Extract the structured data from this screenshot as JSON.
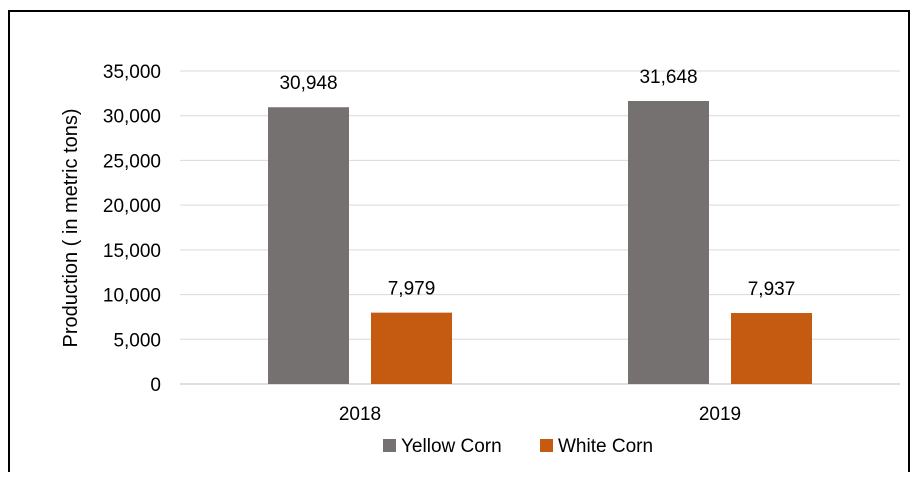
{
  "chart_data": {
    "type": "bar",
    "title": "",
    "xlabel": "",
    "ylabel": "Production ( in metric tons)",
    "categories": [
      "2018",
      "2019"
    ],
    "series": [
      {
        "name": "Yellow Corn",
        "color": "#767171",
        "values": [
          30948,
          31648
        ],
        "labels": [
          "30,948",
          "31,648"
        ]
      },
      {
        "name": "White Corn",
        "color": "#C55A11",
        "values": [
          7979,
          7937
        ],
        "labels": [
          "7,979",
          "7,937"
        ]
      }
    ],
    "ylim": [
      0,
      35000
    ],
    "yticks": [
      0,
      5000,
      10000,
      15000,
      20000,
      25000,
      30000,
      35000
    ],
    "ytick_labels": [
      "0",
      "5,000",
      "10,000",
      "15,000",
      "20,000",
      "25,000",
      "30,000",
      "35,000"
    ],
    "grid": true,
    "legend": "bottom"
  }
}
